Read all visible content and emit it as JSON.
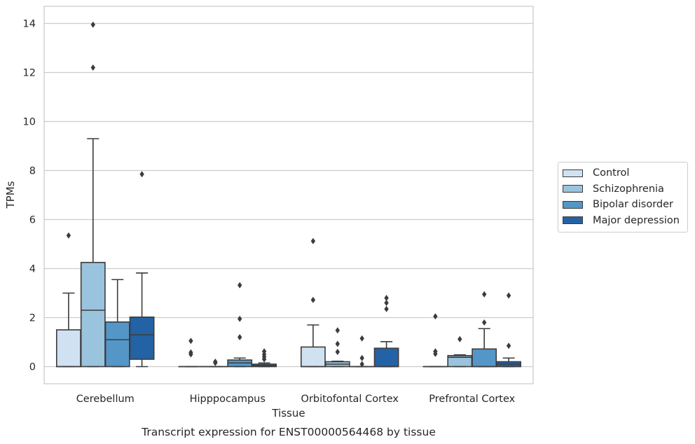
{
  "chart_data": {
    "type": "box",
    "title": "Transcript expression for ENST00000564468 by tissue",
    "xlabel": "Tissue",
    "ylabel": "TPMs",
    "ylim": [
      -0.7,
      14.7
    ],
    "yticks": [
      "0",
      "2",
      "4",
      "6",
      "8",
      "10",
      "12",
      "14"
    ],
    "grid": true,
    "legend_position": "right",
    "categories": [
      "Cerebellum",
      "Hipppocampus",
      "Orbitofontal Cortex",
      "Prefrontal Cortex"
    ],
    "series": [
      {
        "name": "Control",
        "color": "#d0e1f2",
        "boxes": [
          {
            "q1": 0,
            "median": 0,
            "q3": 1.5,
            "whisker_low": 0,
            "whisker_high": 3.0,
            "outliers": [
              5.35
            ]
          },
          {
            "q1": 0,
            "median": 0,
            "q3": 0,
            "whisker_low": 0,
            "whisker_high": 0,
            "outliers": [
              0.5,
              0.58,
              1.05
            ]
          },
          {
            "q1": 0,
            "median": 0,
            "q3": 0.8,
            "whisker_low": 0,
            "whisker_high": 1.7,
            "outliers": [
              2.72,
              5.12
            ]
          },
          {
            "q1": 0,
            "median": 0,
            "q3": 0,
            "whisker_low": 0,
            "whisker_high": 0,
            "outliers": [
              0.52,
              0.62,
              2.05
            ]
          }
        ]
      },
      {
        "name": "Schizophrenia",
        "color": "#9ac3dd",
        "boxes": [
          {
            "q1": 0,
            "median": 2.3,
            "q3": 4.25,
            "whisker_low": 0,
            "whisker_high": 9.3,
            "outliers": [
              12.2,
              13.95
            ]
          },
          {
            "q1": 0,
            "median": 0,
            "q3": 0,
            "whisker_low": 0,
            "whisker_high": 0,
            "outliers": [
              0.15,
              0.2
            ]
          },
          {
            "q1": 0,
            "median": 0.1,
            "q3": 0.2,
            "whisker_low": 0,
            "whisker_high": 0.22,
            "outliers": [
              0.6,
              0.93,
              1.48
            ]
          },
          {
            "q1": 0,
            "median": 0.38,
            "q3": 0.45,
            "whisker_low": 0,
            "whisker_high": 0.48,
            "outliers": [
              1.12
            ]
          }
        ]
      },
      {
        "name": "Bipolar disorder",
        "color": "#5496c7",
        "boxes": [
          {
            "q1": 0,
            "median": 1.1,
            "q3": 1.82,
            "whisker_low": 0,
            "whisker_high": 3.55,
            "outliers": []
          },
          {
            "q1": 0,
            "median": 0.15,
            "q3": 0.27,
            "whisker_low": 0,
            "whisker_high": 0.35,
            "outliers": [
              1.2,
              1.95,
              3.32
            ]
          },
          {
            "q1": 0,
            "median": 0,
            "q3": 0,
            "whisker_low": 0,
            "whisker_high": 0,
            "outliers": [
              0.1,
              0.35,
              1.15
            ]
          },
          {
            "q1": 0,
            "median": 0,
            "q3": 0.72,
            "whisker_low": 0,
            "whisker_high": 1.55,
            "outliers": [
              1.8,
              2.95
            ]
          }
        ]
      },
      {
        "name": "Major depression",
        "color": "#2462a6",
        "boxes": [
          {
            "q1": 0.3,
            "median": 1.3,
            "q3": 2.02,
            "whisker_low": 0,
            "whisker_high": 3.82,
            "outliers": [
              7.85
            ]
          },
          {
            "q1": 0,
            "median": 0.05,
            "q3": 0.1,
            "whisker_low": 0,
            "whisker_high": 0.15,
            "outliers": [
              0.3,
              0.4,
              0.5,
              0.62
            ]
          },
          {
            "q1": 0,
            "median": 0,
            "q3": 0.75,
            "whisker_low": 0,
            "whisker_high": 1.02,
            "outliers": [
              2.35,
              2.6,
              2.8
            ]
          },
          {
            "q1": 0,
            "median": 0.1,
            "q3": 0.2,
            "whisker_low": 0,
            "whisker_high": 0.35,
            "outliers": [
              0.85,
              2.9
            ]
          }
        ]
      }
    ]
  }
}
